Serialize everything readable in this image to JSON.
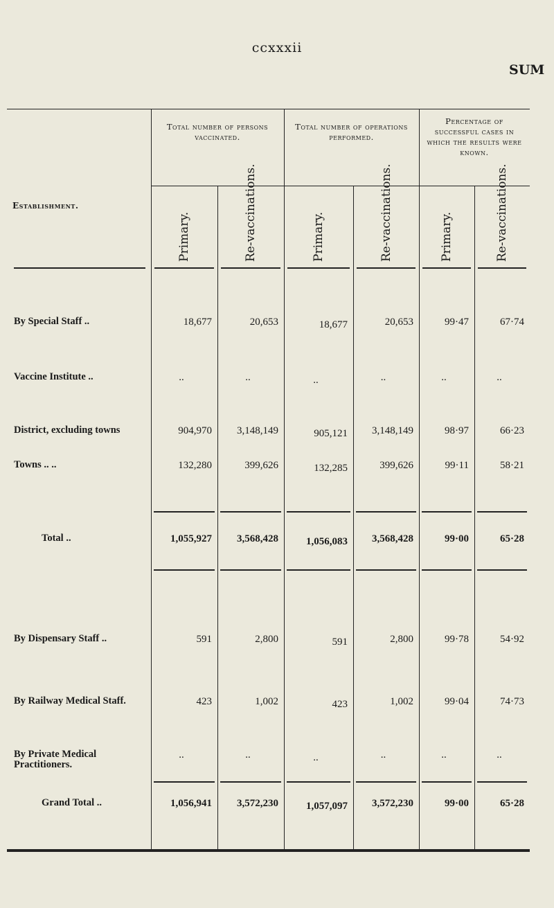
{
  "page_number": "ccxxxii",
  "running_head": "SUM",
  "table": {
    "row_header": "Establishment.",
    "groups": [
      {
        "title": "Total number of persons vaccinated.",
        "subcolumns": [
          "Primary.",
          "Re-vaccinations."
        ]
      },
      {
        "title": "Total number of operations performed.",
        "subcolumns": [
          "Primary.",
          "Re-vaccinations."
        ]
      },
      {
        "title": "Percentage of successful cases in which the results were known.",
        "subcolumns": [
          "Primary.",
          "Re-vaccinations."
        ]
      }
    ],
    "rows": [
      {
        "label": "By Special Staff ..",
        "values": [
          "18,677",
          "20,653",
          "18,677",
          "20,653",
          "99·47",
          "67·74"
        ]
      },
      {
        "label": "Vaccine Institute ..",
        "values": [
          "..",
          "..",
          "..",
          "..",
          "..",
          ".."
        ]
      },
      {
        "label": "District, excluding towns",
        "values": [
          "904,970",
          "3,148,149",
          "905,121",
          "3,148,149",
          "98·97",
          "66·23"
        ]
      },
      {
        "label": "Towns .. ..",
        "values": [
          "132,280",
          "399,626",
          "132,285",
          "399,626",
          "99·11",
          "58·21"
        ]
      },
      {
        "label": "Total ..",
        "values": [
          "1,055,927",
          "3,568,428",
          "1,056,083",
          "3,568,428",
          "99·00",
          "65·28"
        ],
        "bold": true
      },
      {
        "label": "By Dispensary Staff ..",
        "values": [
          "591",
          "2,800",
          "591",
          "2,800",
          "99·78",
          "54·92"
        ]
      },
      {
        "label": "By Railway Medical Staff.",
        "values": [
          "423",
          "1,002",
          "423",
          "1,002",
          "99·04",
          "74·73"
        ]
      },
      {
        "label": "By Private Medical Practitioners.",
        "values": [
          "..",
          "..",
          "..",
          "..",
          "..",
          ".."
        ]
      },
      {
        "label": "Grand Total ..",
        "values": [
          "1,056,941",
          "3,572,230",
          "1,057,097",
          "3,572,230",
          "99·00",
          "65·28"
        ],
        "bold": true
      }
    ]
  }
}
